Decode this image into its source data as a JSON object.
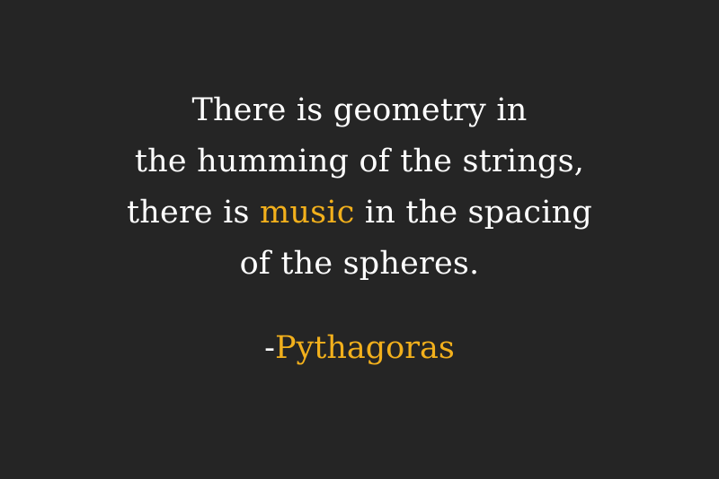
{
  "quote": {
    "line1": "There is geometry in",
    "line2": "the humming of the strings,",
    "line3_pre": "there is ",
    "line3_accent": "music",
    "line3_post": " in the spacing",
    "line4": "of the spheres."
  },
  "attribution": {
    "dash": "-",
    "name": "Pythagoras"
  },
  "colors": {
    "background": "#252525",
    "text": "#ffffff",
    "accent": "#f2b01c"
  }
}
